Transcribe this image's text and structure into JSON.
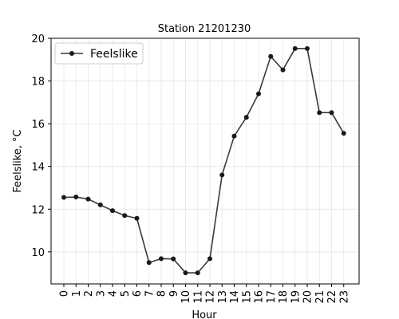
{
  "chart_data": {
    "type": "line",
    "title": "Station 21201230",
    "xlabel": "Hour",
    "ylabel": "Feelslike, °C",
    "x": [
      0,
      1,
      2,
      3,
      4,
      5,
      6,
      7,
      8,
      9,
      10,
      11,
      12,
      13,
      14,
      15,
      16,
      17,
      18,
      19,
      20,
      21,
      22,
      23
    ],
    "series": [
      {
        "name": "Feelslike",
        "values": [
          12.55,
          12.57,
          12.47,
          12.2,
          11.93,
          11.7,
          11.57,
          9.5,
          9.68,
          9.67,
          9.02,
          9.02,
          9.68,
          13.6,
          15.42,
          16.3,
          17.4,
          19.15,
          18.52,
          19.52,
          19.52,
          16.52,
          16.52,
          15.55
        ],
        "color": "#3a3a3a",
        "marker": "circle"
      }
    ],
    "ylim": [
      8.5,
      20
    ],
    "yticks": [
      10,
      12,
      14,
      16,
      18,
      20
    ],
    "grid": true,
    "legend": "upper-left"
  }
}
